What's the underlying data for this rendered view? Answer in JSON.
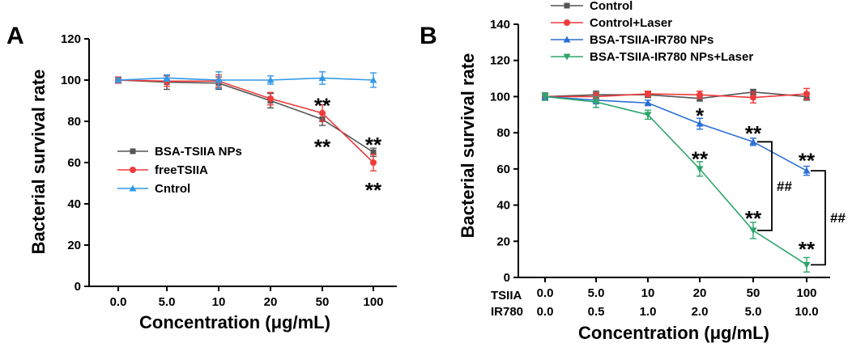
{
  "chart_data": [
    {
      "panel": "A",
      "type": "line",
      "title": "",
      "xlabel": "Concentration (μg/mL)",
      "ylabel": "Bacterial survival rate",
      "categories": [
        "0.0",
        "5.0",
        "10",
        "20",
        "50",
        "100"
      ],
      "ylim": [
        0,
        120
      ],
      "yticks": [
        "0",
        "20",
        "40",
        "60",
        "80",
        "100",
        "120"
      ],
      "legend_position": "middle-left",
      "series": [
        {
          "name": "BSA-TSIIA NPs",
          "color": "#555555",
          "marker": "square",
          "values": [
            100,
            99,
            98.5,
            90,
            81,
            65
          ],
          "errors": [
            1.5,
            3.5,
            3,
            3.5,
            3,
            2
          ]
        },
        {
          "name": "freeTSIIA",
          "color": "#ef3b3b",
          "marker": "circle",
          "values": [
            100,
            99.5,
            99.5,
            91,
            84,
            60
          ],
          "errors": [
            1.5,
            2.5,
            3,
            3,
            4,
            4
          ]
        },
        {
          "name": "Cntrol",
          "color": "#3399e6",
          "marker": "triangle-up",
          "values": [
            100,
            101,
            100,
            100,
            101,
            100
          ],
          "errors": [
            1,
            1.5,
            4,
            2,
            3,
            3.5
          ]
        }
      ],
      "annotations": [
        {
          "text": "**",
          "category": "50",
          "value": 88
        },
        {
          "text": "**",
          "category": "50",
          "value": 68
        },
        {
          "text": "**",
          "category": "100",
          "value": 69
        },
        {
          "text": "**",
          "category": "100",
          "value": 47
        }
      ]
    },
    {
      "panel": "B",
      "type": "line",
      "title": "",
      "xlabel": "Concentration (μg/mL)",
      "ylabel": "Bacterial survival rate",
      "categories": [
        "0.0",
        "5.0",
        "10",
        "20",
        "50",
        "100"
      ],
      "categories2": [
        "0.0",
        "0.5",
        "1.0",
        "2.0",
        "5.0",
        "10.0"
      ],
      "row_labels": [
        "TSIIA",
        "IR780"
      ],
      "ylim": [
        0,
        140
      ],
      "yticks": [
        "0",
        "20",
        "40",
        "60",
        "80",
        "100",
        "120",
        "140"
      ],
      "legend_position": "top-left",
      "series": [
        {
          "name": "Control",
          "color": "#555555",
          "marker": "square",
          "values": [
            100,
            101,
            101,
            99,
            102.5,
            100
          ],
          "errors": [
            2,
            2,
            1.5,
            1.5,
            1.5,
            2
          ]
        },
        {
          "name": "Control+Laser",
          "color": "#ef3b3b",
          "marker": "circle",
          "values": [
            100,
            100,
            101.5,
            101,
            99.5,
            101.5
          ],
          "errors": [
            2,
            2,
            1.5,
            2,
            3,
            3
          ]
        },
        {
          "name": "BSA-TSIIA-IR780 NPs",
          "color": "#2b6fd6",
          "marker": "triangle-up",
          "values": [
            100,
            98,
            96.5,
            85,
            75,
            59
          ],
          "errors": [
            2,
            2,
            1.5,
            3,
            2,
            2.5
          ]
        },
        {
          "name": "BSA-TSIIA-IR780 NPs+Laser",
          "color": "#2ea56b",
          "marker": "triangle-down",
          "values": [
            100,
            97,
            90,
            60,
            26,
            7
          ],
          "errors": [
            2,
            3,
            2.5,
            4,
            4.5,
            4
          ]
        }
      ],
      "annotations": [
        {
          "text": "*",
          "category": "20",
          "value": 90
        },
        {
          "text": "**",
          "category": "20",
          "value": 66
        },
        {
          "text": "**",
          "category": "50",
          "value": 80
        },
        {
          "text": "**",
          "category": "50",
          "value": 33
        },
        {
          "text": "**",
          "category": "100",
          "value": 65
        },
        {
          "text": "**",
          "category": "100",
          "value": 16
        }
      ],
      "brackets": [
        {
          "text": "##",
          "category": "50",
          "from": 75,
          "to": 26
        },
        {
          "text": "##",
          "category": "100",
          "from": 59,
          "to": 7
        }
      ]
    }
  ]
}
